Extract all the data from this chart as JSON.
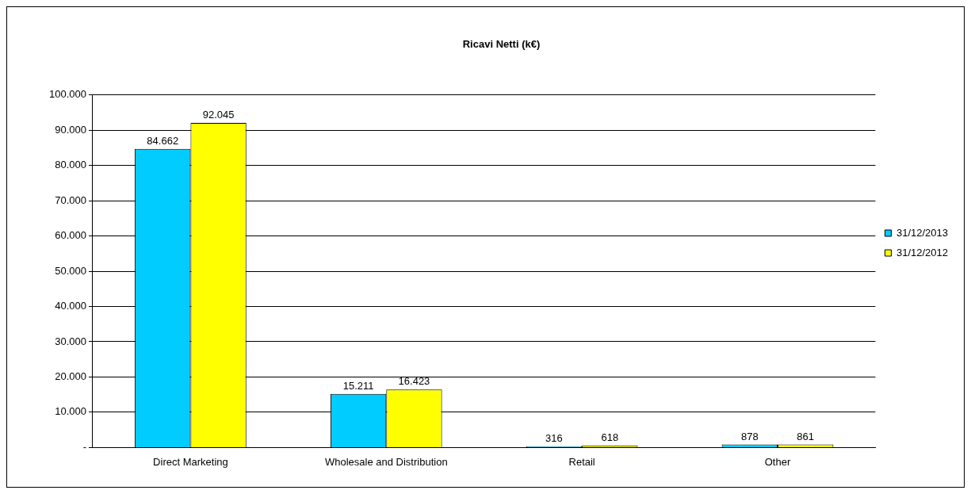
{
  "chart_data": {
    "type": "bar",
    "title": "Ricavi Netti (k€)",
    "categories": [
      "Direct Marketing",
      "Wholesale and Distribution",
      "Retail",
      "Other"
    ],
    "series": [
      {
        "name": "31/12/2013",
        "color": "#00ccff",
        "values": [
          84662,
          15211,
          316,
          878
        ],
        "value_labels": [
          "84.662",
          "15.211",
          "316",
          "878"
        ]
      },
      {
        "name": "31/12/2012",
        "color": "#ffff00",
        "values": [
          92045,
          16423,
          618,
          861
        ],
        "value_labels": [
          "92.045",
          "16.423",
          "618",
          "861"
        ]
      }
    ],
    "ylim": [
      0,
      100000
    ],
    "yticks": [
      {
        "value": 0,
        "label": "-"
      },
      {
        "value": 10000,
        "label": "10.000"
      },
      {
        "value": 20000,
        "label": "20.000"
      },
      {
        "value": 30000,
        "label": "30.000"
      },
      {
        "value": 40000,
        "label": "40.000"
      },
      {
        "value": 50000,
        "label": "50.000"
      },
      {
        "value": 60000,
        "label": "60.000"
      },
      {
        "value": 70000,
        "label": "70.000"
      },
      {
        "value": 80000,
        "label": "80.000"
      },
      {
        "value": 90000,
        "label": "90.000"
      },
      {
        "value": 100000,
        "label": "100.000"
      }
    ],
    "grid": "y",
    "legend": "right"
  }
}
